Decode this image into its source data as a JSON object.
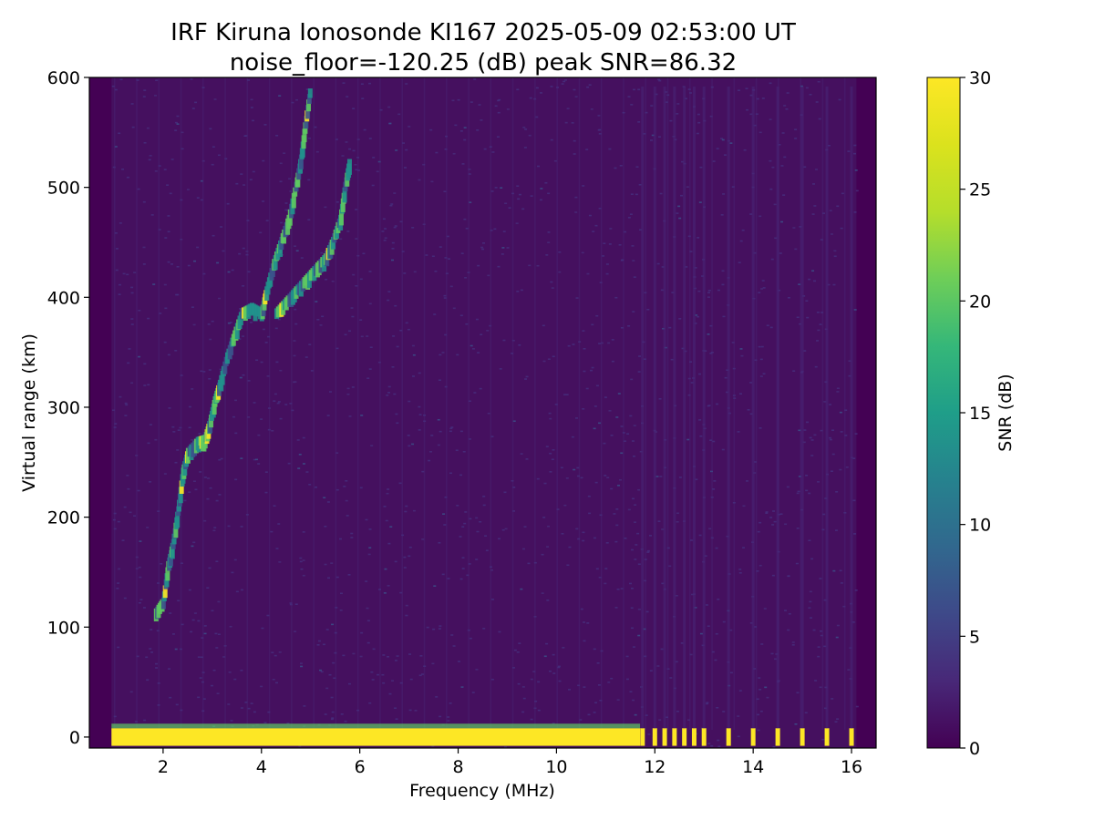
{
  "chart_data": {
    "type": "heatmap",
    "title_line1": "IRF Kiruna Ionosonde KI167 2025-05-09 02:53:00  UT",
    "title_line2": "noise_floor=-120.25 (dB) peak SNR=86.32",
    "xlabel": "Frequency (MHz)",
    "ylabel": "Virtual range (km)",
    "xlim": [
      0.5,
      16.5
    ],
    "ylim": [
      -10,
      600
    ],
    "xticks": [
      2,
      4,
      6,
      8,
      10,
      12,
      14,
      16
    ],
    "yticks": [
      0,
      100,
      200,
      300,
      400,
      500,
      600
    ],
    "colorbar": {
      "label": "SNR (dB)",
      "range": [
        0,
        30
      ],
      "ticks": [
        0,
        5,
        10,
        15,
        20,
        25,
        30
      ],
      "colormap": "viridis"
    },
    "colors": {
      "background": "#440154",
      "noise": "#46307e",
      "low": "#3b528b",
      "mid": "#21918c",
      "high": "#5ec962",
      "saturated": "#fde725"
    },
    "data_coverage_mhz": [
      0.95,
      16.1
    ],
    "traces": [
      {
        "name": "",
        "points": [
          [
            1.85,
            112
          ],
          [
            2.0,
            122
          ],
          [
            2.1,
            155
          ],
          [
            2.2,
            175
          ],
          [
            2.3,
            205
          ],
          [
            2.4,
            240
          ],
          [
            2.5,
            258
          ],
          [
            2.7,
            268
          ],
          [
            2.85,
            270
          ],
          [
            2.95,
            285
          ],
          [
            3.05,
            305
          ],
          [
            3.15,
            320
          ],
          [
            3.3,
            345
          ],
          [
            3.45,
            365
          ],
          [
            3.6,
            385
          ],
          [
            3.8,
            390
          ],
          [
            4.0,
            385
          ],
          [
            4.1,
            405
          ],
          [
            4.25,
            430
          ],
          [
            4.4,
            450
          ],
          [
            4.55,
            470
          ],
          [
            4.7,
            500
          ],
          [
            4.8,
            525
          ],
          [
            4.9,
            560
          ],
          [
            5.0,
            590
          ]
        ]
      },
      {
        "name": "",
        "points": [
          [
            4.3,
            385
          ],
          [
            4.5,
            395
          ],
          [
            4.7,
            405
          ],
          [
            4.9,
            415
          ],
          [
            5.1,
            425
          ],
          [
            5.3,
            435
          ],
          [
            5.45,
            450
          ],
          [
            5.6,
            470
          ],
          [
            5.7,
            500
          ],
          [
            5.8,
            525
          ]
        ]
      }
    ],
    "ground_band_km": [
      -8,
      8
    ],
    "ground_band_fmax": 11.7,
    "discrete_channels_mhz": [
      11.75,
      12.0,
      12.2,
      12.4,
      12.6,
      12.8,
      13.0,
      13.5,
      14.0,
      14.5,
      15.0,
      15.5,
      16.0
    ]
  }
}
